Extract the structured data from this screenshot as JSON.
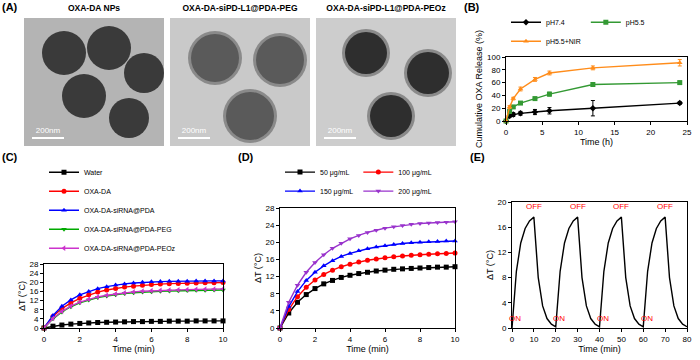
{
  "images": {
    "title": "(A)",
    "panels": [
      {
        "label": "OXA-DA NPs",
        "scale_bar": "200nm"
      },
      {
        "label": "OXA-DA-siPD-L1@PDA-PEG",
        "scale_bar": "200nm"
      },
      {
        "label": "OXA-DA-siPD-L1@PDA-PEOz",
        "scale_bar": "200nm"
      }
    ]
  },
  "chart_data": [
    {
      "type": "line",
      "title": "(B)",
      "x_label": "Time (h)",
      "y_label": "Cumulative OXA Release (%)",
      "x": [
        0,
        0.5,
        1,
        2,
        4,
        6,
        12,
        24
      ],
      "xlim": [
        0,
        25
      ],
      "xticks": [
        0,
        5,
        10,
        15,
        20,
        25
      ],
      "ylim": [
        0,
        100
      ],
      "yticks": [
        0,
        20,
        40,
        60,
        80,
        100
      ],
      "legend": "above",
      "series": [
        {
          "name": "pH7.4",
          "color": "#000000",
          "marker": "diamond",
          "values": [
            0,
            8,
            10,
            12,
            14,
            16,
            20,
            28
          ],
          "errors": [
            0,
            2,
            3,
            3,
            4,
            5,
            12,
            2
          ]
        },
        {
          "name": "pH5.5",
          "color": "#339933",
          "marker": "square",
          "values": [
            0,
            15,
            22,
            28,
            35,
            42,
            57,
            60
          ],
          "errors": [
            0,
            2,
            2,
            2,
            2,
            3,
            3,
            2
          ]
        },
        {
          "name": "pH5.5+NIR",
          "color": "#ff8c1a",
          "marker": "triangle-up",
          "values": [
            0,
            22,
            35,
            50,
            65,
            75,
            83,
            91
          ],
          "errors": [
            0,
            2,
            2,
            3,
            3,
            3,
            3,
            5
          ]
        }
      ]
    },
    {
      "type": "line",
      "title": "(C)",
      "x_label": "Time (min)",
      "y_label": "ΔT (°C)",
      "x": [
        0,
        0.5,
        1,
        1.5,
        2,
        2.5,
        3,
        3.5,
        4,
        4.5,
        5,
        5.5,
        6,
        6.5,
        7,
        7.5,
        8,
        8.5,
        9,
        9.5,
        10
      ],
      "xlim": [
        0,
        10
      ],
      "xticks": [
        0,
        2,
        4,
        6,
        8,
        10
      ],
      "ylim": [
        0,
        28
      ],
      "yticks": [
        0,
        4,
        8,
        12,
        16,
        20,
        24,
        28
      ],
      "legend": "above",
      "series": [
        {
          "name": "Water",
          "color": "#000000",
          "marker": "square",
          "values": [
            0,
            0.8,
            1.3,
            1.7,
            2.0,
            2.2,
            2.4,
            2.5,
            2.6,
            2.7,
            2.8,
            2.8,
            2.9,
            2.9,
            3.0,
            3.0,
            3.0,
            3.1,
            3.1,
            3.1,
            3.1
          ]
        },
        {
          "name": "OXA-DA",
          "color": "#ff0000",
          "marker": "circle",
          "values": [
            0,
            5,
            8.5,
            11,
            13,
            14.5,
            15.7,
            16.6,
            17.3,
            17.9,
            18.3,
            18.7,
            19.0,
            19.2,
            19.4,
            19.5,
            19.6,
            19.7,
            19.8,
            19.8,
            19.9
          ]
        },
        {
          "name": "OXA-DA-siRNA@PDA",
          "color": "#0000ff",
          "marker": "triangle-up",
          "values": [
            0,
            5.5,
            9.5,
            12.3,
            14.5,
            16,
            17.2,
            18.1,
            18.8,
            19.3,
            19.7,
            20,
            20.2,
            20.3,
            20.4,
            20.5,
            20.5,
            20.6,
            20.6,
            20.6,
            20.6
          ]
        },
        {
          "name": "OXA-DA-siRNA@PDA-PEG",
          "color": "#00aa00",
          "marker": "triangle-down",
          "values": [
            0,
            4,
            7,
            9.3,
            11,
            12.3,
            13.3,
            14,
            14.6,
            15.1,
            15.4,
            15.7,
            15.9,
            16.1,
            16.2,
            16.3,
            16.4,
            16.5,
            16.5,
            16.6,
            16.6
          ]
        },
        {
          "name": "OXA-DA-siRNA@PDA-PEOz",
          "color": "#cc33cc",
          "marker": "triangle-left",
          "values": [
            0,
            4.2,
            7.3,
            9.6,
            11.3,
            12.6,
            13.6,
            14.3,
            14.9,
            15.4,
            15.8,
            16.1,
            16.3,
            16.5,
            16.6,
            16.7,
            16.8,
            16.9,
            17.0,
            17.0,
            17.1
          ]
        }
      ]
    },
    {
      "type": "line",
      "title": "(D)",
      "x_label": "Time (min)",
      "y_label": "ΔT (°C)",
      "x": [
        0,
        0.5,
        1,
        1.5,
        2,
        2.5,
        3,
        3.5,
        4,
        4.5,
        5,
        5.5,
        6,
        6.5,
        7,
        7.5,
        8,
        8.5,
        9,
        9.5,
        10
      ],
      "xlim": [
        0,
        10
      ],
      "xticks": [
        0,
        2,
        4,
        6,
        8,
        10
      ],
      "ylim": [
        0,
        28
      ],
      "yticks": [
        0,
        4,
        8,
        12,
        16,
        20,
        24,
        28
      ],
      "legend": "above",
      "series": [
        {
          "name": "50 μg/mL",
          "color": "#000000",
          "marker": "square",
          "values": [
            0,
            3.5,
            6,
            7.8,
            9.2,
            10.3,
            11.1,
            11.8,
            12.3,
            12.7,
            13,
            13.3,
            13.5,
            13.7,
            13.8,
            13.9,
            14,
            14.1,
            14.2,
            14.2,
            14.3
          ]
        },
        {
          "name": "100 μg/mL",
          "color": "#ff0000",
          "marker": "circle",
          "values": [
            0,
            4.3,
            7.3,
            9.5,
            11.2,
            12.5,
            13.5,
            14.3,
            14.9,
            15.4,
            15.8,
            16.1,
            16.4,
            16.6,
            16.8,
            17,
            17.1,
            17.2,
            17.3,
            17.4,
            17.5
          ]
        },
        {
          "name": "150 μg/mL",
          "color": "#0000ff",
          "marker": "triangle-up",
          "values": [
            0,
            5,
            8.5,
            11.1,
            13,
            14.5,
            15.7,
            16.7,
            17.4,
            18,
            18.5,
            18.9,
            19.2,
            19.5,
            19.7,
            19.9,
            20,
            20.1,
            20.2,
            20.3,
            20.3
          ]
        },
        {
          "name": "200 μg/mL",
          "color": "#9933cc",
          "marker": "triangle-down",
          "values": [
            0,
            6,
            10,
            13,
            15.3,
            17.1,
            18.6,
            19.8,
            20.8,
            21.6,
            22.3,
            22.8,
            23.3,
            23.6,
            23.9,
            24.2,
            24.4,
            24.5,
            24.6,
            24.7,
            24.8
          ]
        }
      ]
    },
    {
      "type": "line",
      "title": "(E)",
      "x_label": "Time (min)",
      "y_label": "ΔT (°C)",
      "x": [
        0,
        2,
        4,
        6,
        8,
        10,
        12,
        14,
        16,
        18,
        20,
        22,
        24,
        26,
        28,
        30,
        32,
        34,
        36,
        38,
        40,
        42,
        44,
        46,
        48,
        50,
        52,
        54,
        56,
        58,
        60,
        62,
        64,
        66,
        68,
        70,
        72,
        74,
        76,
        78,
        80
      ],
      "xlim": [
        0,
        80
      ],
      "xticks": [
        0,
        10,
        20,
        30,
        40,
        50,
        60,
        70,
        80
      ],
      "ylim": [
        0,
        20
      ],
      "yticks": [
        0,
        4,
        8,
        12,
        16,
        20
      ],
      "series": [
        {
          "color": "#000000",
          "values": [
            0,
            9,
            13.5,
            15.8,
            17,
            17.6,
            8,
            3.5,
            1.5,
            0.6,
            0.2,
            9,
            13.5,
            15.8,
            17,
            17.6,
            8,
            3.5,
            1.5,
            0.6,
            0.2,
            9,
            13.5,
            15.8,
            17,
            17.6,
            8,
            3.5,
            1.5,
            0.6,
            0.2,
            9,
            13.5,
            15.8,
            17,
            17.6,
            8,
            3.5,
            1.5,
            0.6,
            0.2
          ]
        }
      ],
      "annotations": [
        {
          "x": 10,
          "y": 18.2,
          "text": "OFF"
        },
        {
          "x": 30,
          "y": 18.2,
          "text": "OFF"
        },
        {
          "x": 50,
          "y": 18.2,
          "text": "OFF"
        },
        {
          "x": 70,
          "y": 18.2,
          "text": "OFF"
        },
        {
          "x": 1.5,
          "y": 0.5,
          "text": "ON"
        },
        {
          "x": 21.5,
          "y": 0.5,
          "text": "ON"
        },
        {
          "x": 41.5,
          "y": 0.5,
          "text": "ON"
        },
        {
          "x": 61.5,
          "y": 0.5,
          "text": "ON"
        }
      ]
    }
  ]
}
